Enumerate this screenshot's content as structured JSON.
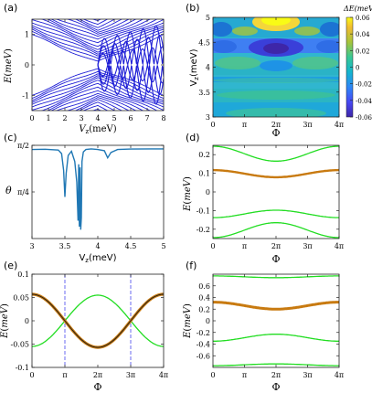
{
  "panel_labels": [
    "(a)",
    "(b)",
    "(c)",
    "(d)",
    "(e)",
    "(f)"
  ],
  "colorbar_label": "ΔE(meV)",
  "chart_data": [
    {
      "type": "line",
      "panel": "(a)",
      "xlabel": "Vz(meV)",
      "ylabel": "E(meV)",
      "xlim": [
        0,
        8
      ],
      "ylim": [
        -1.5,
        1.5
      ],
      "xticks": [
        "0",
        "1",
        "2",
        "3",
        "4",
        "5",
        "6",
        "7",
        "8"
      ],
      "yticks": [
        "-1",
        "0",
        "1"
      ],
      "grid": false,
      "description_of_series": "dense blue energy bands vs Vz; gap closes near Vz≈4 meV, oscillating Majorana modes for Vz>4",
      "series": [
        {
          "color": "#1f1fd6"
        }
      ]
    },
    {
      "type": "heatmap",
      "panel": "(b)",
      "xlabel": "Φ",
      "ylabel": "Vz(meV)",
      "xlim": [
        0,
        4
      ],
      "ylim": [
        3,
        5
      ],
      "xticks": [
        "0",
        "π",
        "2π",
        "3π",
        "4π"
      ],
      "yticks": [
        "3",
        "3.5",
        "4",
        "4.5",
        "5"
      ],
      "colorbar": {
        "label": "ΔE(meV)",
        "range": [
          -0.06,
          0.06
        ],
        "ticks": [
          "0.06",
          "0.04",
          "0.02",
          "0",
          "-0.02",
          "-0.04",
          "-0.06"
        ]
      }
    },
    {
      "type": "line",
      "panel": "(c)",
      "xlabel": "Vz(meV)",
      "ylabel": "θ",
      "xlim": [
        3,
        5
      ],
      "ylim": [
        0,
        1.5708
      ],
      "xticks": [
        "3",
        "3.5",
        "4",
        "4.5",
        "5"
      ],
      "yticks": [
        "π/4",
        "π/2"
      ],
      "series": [
        {
          "color": "#1f77b4",
          "x": [
            3.0,
            3.2,
            3.4,
            3.45,
            3.48,
            3.5,
            3.52,
            3.55,
            3.6,
            3.65,
            3.68,
            3.7,
            3.71,
            3.72,
            3.73,
            3.74,
            3.75,
            3.76,
            3.78,
            3.82,
            3.9,
            4.0,
            4.1,
            4.15,
            4.2,
            4.3,
            4.5,
            4.8,
            5.0
          ],
          "y": [
            1.5,
            1.505,
            1.49,
            1.43,
            1.15,
            0.7,
            1.1,
            1.4,
            1.47,
            1.3,
            0.95,
            0.3,
            1.25,
            0.2,
            1.2,
            0.15,
            0.35,
            1.3,
            1.46,
            1.5,
            1.51,
            1.5,
            1.48,
            1.36,
            1.45,
            1.5,
            1.508,
            1.51,
            1.51
          ]
        }
      ]
    },
    {
      "type": "line",
      "panel": "(d)",
      "xlabel": "Φ",
      "ylabel": "E(meV)",
      "xlim": [
        0,
        4
      ],
      "ylim": [
        -0.25,
        0.25
      ],
      "xticks": [
        "0",
        "π",
        "2π",
        "3π",
        "4π"
      ],
      "yticks": [
        "0.2",
        "0.1",
        "0",
        "-0.1",
        "-0.2"
      ],
      "x_unit": "π",
      "series": [
        {
          "color": "#22dd22",
          "width": 1.3,
          "base": 0.205,
          "amp": 0.04,
          "period": 4
        },
        {
          "color": "#22dd22",
          "width": 1.3,
          "base": 0.098,
          "amp": 0.02,
          "period": 4
        },
        {
          "color": "#c87a10",
          "width": 2.4,
          "base": 0.098,
          "amp": 0.019,
          "period": 4
        },
        {
          "color": "#22dd22",
          "width": 1.3,
          "base": -0.118,
          "amp": -0.02,
          "period": 4
        },
        {
          "color": "#22dd22",
          "width": 1.3,
          "base": -0.205,
          "amp": -0.04,
          "period": 4
        }
      ]
    },
    {
      "type": "line",
      "panel": "(e)",
      "xlabel": "Φ",
      "ylabel": "E(meV)",
      "xlim": [
        0,
        4
      ],
      "ylim": [
        -0.1,
        0.1
      ],
      "xticks": [
        "0",
        "π",
        "2π",
        "3π",
        "4π"
      ],
      "yticks": [
        "0.1",
        "0.05",
        "0",
        "-0.05",
        "-0.1"
      ],
      "x_unit": "π",
      "vlines": [
        1,
        3
      ],
      "series": [
        {
          "color": "#22dd22",
          "width": 1.3,
          "base": 0,
          "amp": -0.055,
          "period": 4
        },
        {
          "color": "#c87a10",
          "width": 3.2,
          "base": 0,
          "amp": 0.057,
          "period": 4
        },
        {
          "color": "#1a1a1a",
          "width": 0.9,
          "base": 0,
          "amp": 0.057,
          "period": 4
        }
      ]
    },
    {
      "type": "line",
      "panel": "(f)",
      "xlabel": "Φ",
      "ylabel": "E(meV)",
      "xlim": [
        0,
        4
      ],
      "ylim": [
        -0.8,
        0.8
      ],
      "xticks": [
        "0",
        "π",
        "2π",
        "3π",
        "4π"
      ],
      "yticks": [
        "0.6",
        "0.4",
        "0.2",
        "0",
        "-0.2",
        "-0.4",
        "-0.6"
      ],
      "x_unit": "π",
      "series": [
        {
          "color": "#22dd22",
          "width": 1.3,
          "base": 0.755,
          "amp": 0.015,
          "period": 4
        },
        {
          "color": "#c87a10",
          "width": 3.0,
          "base": 0.26,
          "amp": 0.06,
          "period": 4
        },
        {
          "color": "#22dd22",
          "width": 1.3,
          "base": -0.29,
          "amp": -0.06,
          "period": 4
        },
        {
          "color": "#22dd22",
          "width": 1.3,
          "base": -0.755,
          "amp": -0.015,
          "period": 4
        }
      ]
    }
  ]
}
